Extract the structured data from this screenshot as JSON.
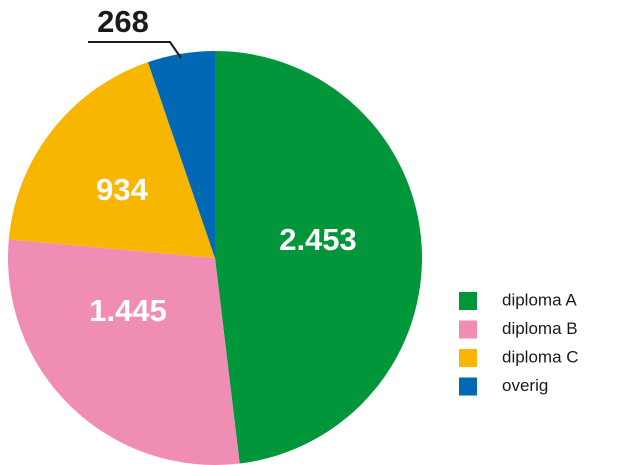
{
  "chart_data": {
    "type": "pie",
    "categories": [
      "diploma A",
      "diploma B",
      "diploma C",
      "overig"
    ],
    "values": [
      2453,
      1445,
      934,
      268
    ],
    "value_labels": [
      "2.453",
      "1.445",
      "934",
      "268"
    ],
    "colors": [
      "#009639",
      "#ef8db4",
      "#f9b600",
      "#0068b4"
    ]
  }
}
